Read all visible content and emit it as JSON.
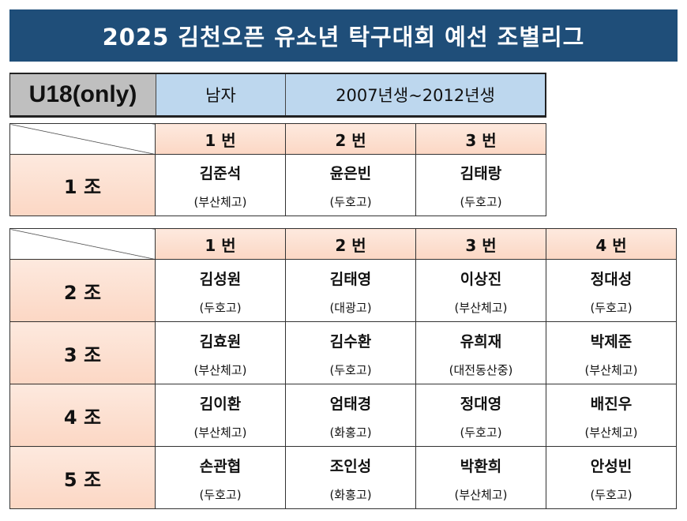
{
  "title": "2025 김천오픈 유소년 탁구대회 예선 조별리그",
  "info": {
    "category": "U18(only)",
    "gender": "남자",
    "birth_years": "2007년생~2012년생"
  },
  "table1": {
    "slots": [
      "1 번",
      "2 번",
      "3 번"
    ],
    "groups": [
      {
        "name": "1 조",
        "players": [
          {
            "name": "김준석",
            "school": "(부산체고)"
          },
          {
            "name": "윤은빈",
            "school": "(두호고)"
          },
          {
            "name": "김태랑",
            "school": "(두호고)"
          }
        ]
      }
    ]
  },
  "table2": {
    "slots": [
      "1 번",
      "2 번",
      "3 번",
      "4 번"
    ],
    "groups": [
      {
        "name": "2 조",
        "players": [
          {
            "name": "김성원",
            "school": "(두호고)"
          },
          {
            "name": "김태영",
            "school": "(대광고)"
          },
          {
            "name": "이상진",
            "school": "(부산체고)"
          },
          {
            "name": "정대성",
            "school": "(두호고)"
          }
        ]
      },
      {
        "name": "3 조",
        "players": [
          {
            "name": "김효원",
            "school": "(부산체고)"
          },
          {
            "name": "김수환",
            "school": "(두호고)"
          },
          {
            "name": "유희재",
            "school": "(대전동산중)"
          },
          {
            "name": "박제준",
            "school": "(부산체고)"
          }
        ]
      },
      {
        "name": "4 조",
        "players": [
          {
            "name": "김이환",
            "school": "(부산체고)"
          },
          {
            "name": "엄태경",
            "school": "(화홍고)"
          },
          {
            "name": "정대영",
            "school": "(두호고)"
          },
          {
            "name": "배진우",
            "school": "(부산체고)"
          }
        ]
      },
      {
        "name": "5 조",
        "players": [
          {
            "name": "손관협",
            "school": "(두호고)"
          },
          {
            "name": "조인성",
            "school": "(화홍고)"
          },
          {
            "name": "박환희",
            "school": "(부산체고)"
          },
          {
            "name": "안성빈",
            "school": "(두호고)"
          }
        ]
      }
    ]
  }
}
